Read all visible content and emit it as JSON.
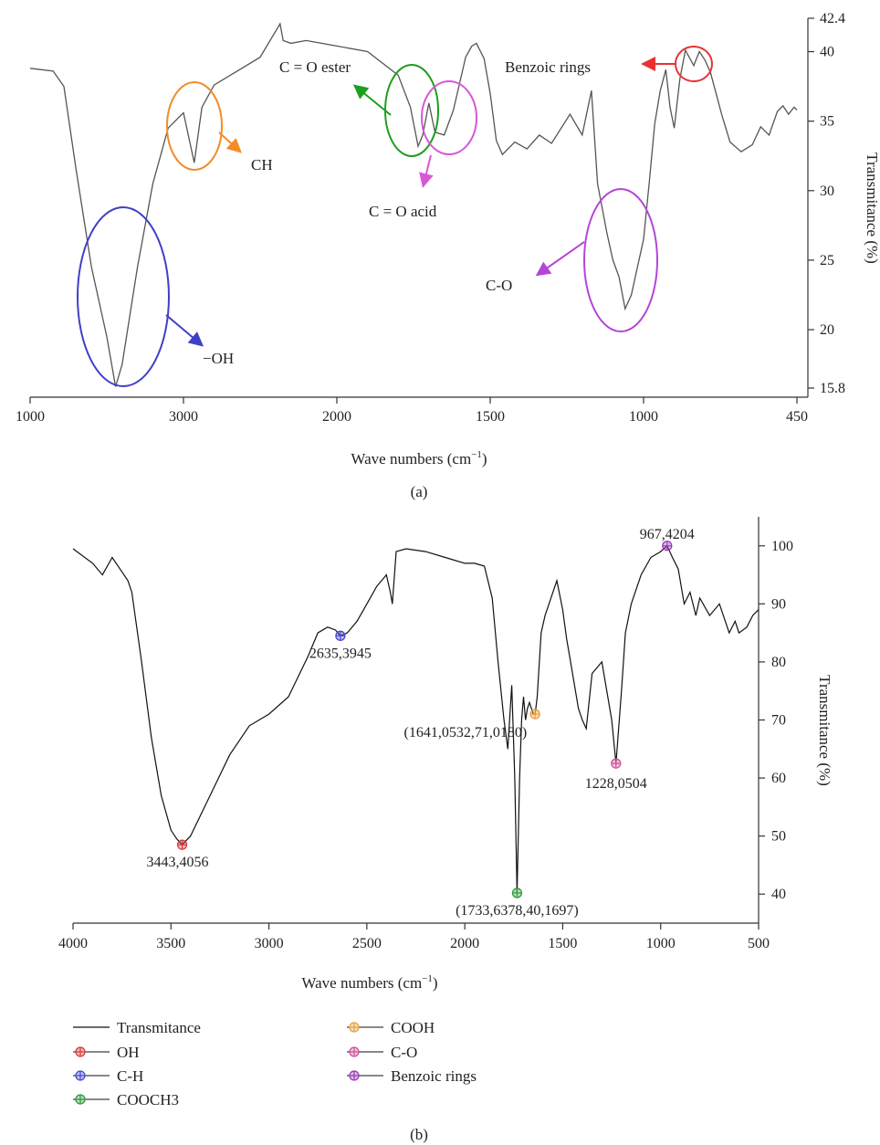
{
  "chart_data": [
    {
      "panel": "(a)",
      "type": "line",
      "xlabel": "Wave numbers (cm",
      "xlabel_sup": "−1",
      "xlabel_end": ")",
      "ylabel": "Transmitance (%)",
      "x_ticks": [
        "1000",
        "3000",
        "2000",
        "1500",
        "1000",
        "450"
      ],
      "y_ticks": [
        "42.4",
        "40",
        "35",
        "30",
        "25",
        "20",
        "15.8"
      ],
      "ylim": [
        15.8,
        42.4
      ],
      "series": [
        {
          "x": [
            4000,
            3850,
            3780,
            3700,
            3600,
            3500,
            3443,
            3400,
            3300,
            3200,
            3100,
            3000,
            2930,
            2880,
            2800,
            2650,
            2500,
            2370,
            2350,
            2300,
            2200,
            2050,
            1900,
            1800,
            1760,
            1735,
            1720,
            1700,
            1680,
            1650,
            1620,
            1580,
            1560,
            1545,
            1520,
            1500,
            1480,
            1460,
            1420,
            1380,
            1340,
            1300,
            1240,
            1200,
            1170,
            1150,
            1120,
            1100,
            1080,
            1060,
            1040,
            1020,
            1000,
            980,
            960,
            940,
            920,
            905,
            890,
            870,
            850,
            820,
            800,
            780,
            760,
            740,
            720,
            690,
            650,
            610,
            580,
            550,
            520,
            500,
            480,
            460,
            450
          ],
          "y": [
            38.8,
            38.6,
            37.5,
            31.5,
            24.5,
            19.5,
            15.9,
            17.5,
            24.5,
            30.5,
            34.5,
            35.6,
            32.0,
            36.0,
            37.6,
            38.6,
            39.6,
            42.0,
            40.8,
            40.6,
            40.8,
            40.5,
            40.0,
            38.3,
            36.0,
            33.2,
            34.0,
            36.3,
            34.2,
            34.0,
            35.8,
            39.6,
            40.4,
            40.6,
            39.5,
            37.0,
            33.6,
            32.6,
            33.5,
            33.0,
            34.0,
            33.4,
            35.5,
            34.0,
            37.2,
            30.5,
            27.0,
            25.0,
            23.8,
            21.5,
            22.5,
            24.5,
            26.5,
            30.5,
            34.8,
            37.2,
            38.7,
            36.0,
            34.5,
            38.0,
            40.1,
            39.0,
            40.0,
            39.4,
            38.5,
            37.0,
            35.5,
            33.5,
            32.8,
            33.3,
            34.6,
            34.0,
            35.7,
            36.1,
            35.5,
            36.0,
            35.8
          ]
        }
      ],
      "annotations": {
        "oh": "−OH",
        "ch": "CH",
        "ester": "C = O ester",
        "acid": "C = O acid",
        "co": "C-O",
        "benzoic": "Benzoic rings"
      },
      "annotation_colors": {
        "oh": "#3f3fc8",
        "ch": "#f28c28",
        "ester": "#1e9e1e",
        "acid": "#d757d7",
        "co": "#b545d6",
        "benzoic": "#e83232"
      }
    },
    {
      "panel": "(b)",
      "type": "line",
      "xlabel": "Wave numbers (cm",
      "xlabel_sup": "−1",
      "xlabel_end": ")",
      "ylabel": "Transmitance (%)",
      "xlim": [
        4000,
        500
      ],
      "ylim": [
        35,
        105
      ],
      "x_ticks": [
        4000,
        3500,
        3000,
        2500,
        2000,
        1500,
        1000,
        500
      ],
      "y_ticks": [
        40,
        50,
        60,
        70,
        80,
        90,
        100
      ],
      "series": [
        {
          "name": "Transmitance",
          "x": [
            4000,
            3900,
            3850,
            3800,
            3760,
            3720,
            3700,
            3650,
            3600,
            3550,
            3500,
            3470,
            3443,
            3400,
            3300,
            3200,
            3100,
            3000,
            2900,
            2800,
            2750,
            2700,
            2660,
            2635,
            2600,
            2550,
            2500,
            2450,
            2400,
            2380,
            2370,
            2350,
            2300,
            2200,
            2100,
            2000,
            1950,
            1900,
            1860,
            1830,
            1800,
            1780,
            1760,
            1745,
            1733,
            1720,
            1710,
            1700,
            1690,
            1680,
            1670,
            1660,
            1650,
            1641,
            1630,
            1610,
            1590,
            1570,
            1550,
            1530,
            1500,
            1480,
            1450,
            1420,
            1400,
            1380,
            1350,
            1300,
            1270,
            1250,
            1228,
            1200,
            1180,
            1150,
            1100,
            1050,
            1000,
            967,
            940,
            910,
            880,
            850,
            820,
            800,
            750,
            700,
            650,
            620,
            600,
            560,
            530,
            500
          ],
          "y": [
            99.5,
            97,
            95,
            98,
            96,
            94,
            92,
            80,
            67,
            57,
            51,
            49.5,
            48.5,
            50,
            57,
            64,
            69,
            71,
            74,
            81,
            85,
            86,
            85.5,
            84.5,
            85,
            87,
            90,
            93,
            95,
            92,
            90,
            99,
            99.5,
            99,
            98,
            97,
            97,
            96.5,
            91,
            80,
            70,
            65,
            76,
            60,
            40.2,
            60,
            70,
            74,
            70,
            72,
            73,
            72,
            71,
            71,
            74,
            85,
            88,
            90,
            92,
            94,
            89,
            84,
            78,
            72,
            70,
            68.5,
            78,
            80,
            74,
            70,
            62.5,
            75,
            85,
            90,
            95,
            98,
            99,
            100,
            98,
            96,
            90,
            92,
            88,
            91,
            88,
            90,
            85,
            87,
            85,
            86,
            88,
            89
          ]
        }
      ],
      "markers": [
        {
          "series": "OH",
          "x": 3443,
          "y": 48.5,
          "color": "#d83a3a",
          "label": "3443,4056"
        },
        {
          "series": "C-H",
          "x": 2635,
          "y": 84.5,
          "color": "#4a4ad0",
          "label": "2635,3945"
        },
        {
          "series": "COOCH3",
          "x": 1733,
          "y": 40.2,
          "color": "#2e9a3c",
          "label": "(1733,6378,40,1697)"
        },
        {
          "series": "COOH",
          "x": 1641,
          "y": 71.0,
          "color": "#e8a040",
          "label": "(1641,0532,71,0180)"
        },
        {
          "series": "C-O",
          "x": 1228,
          "y": 62.5,
          "color": "#d0509a",
          "label": "1228,0504"
        },
        {
          "series": "Benzoic rings",
          "x": 967,
          "y": 100.0,
          "color": "#9a3ab8",
          "label": "967,4204"
        }
      ],
      "legend": [
        {
          "label": "Transmitance",
          "kind": "line"
        },
        {
          "label": "OH",
          "kind": "marker",
          "color": "#d83a3a"
        },
        {
          "label": "C-H",
          "kind": "marker",
          "color": "#4a4ad0"
        },
        {
          "label": "COOCH3",
          "kind": "marker",
          "color": "#2e9a3c"
        },
        {
          "label": "COOH",
          "kind": "marker",
          "color": "#e8a040"
        },
        {
          "label": "C-O",
          "kind": "marker",
          "color": "#d0509a"
        },
        {
          "label": "Benzoic rings",
          "kind": "marker",
          "color": "#9a3ab8"
        }
      ],
      "legend_position": "below"
    }
  ]
}
